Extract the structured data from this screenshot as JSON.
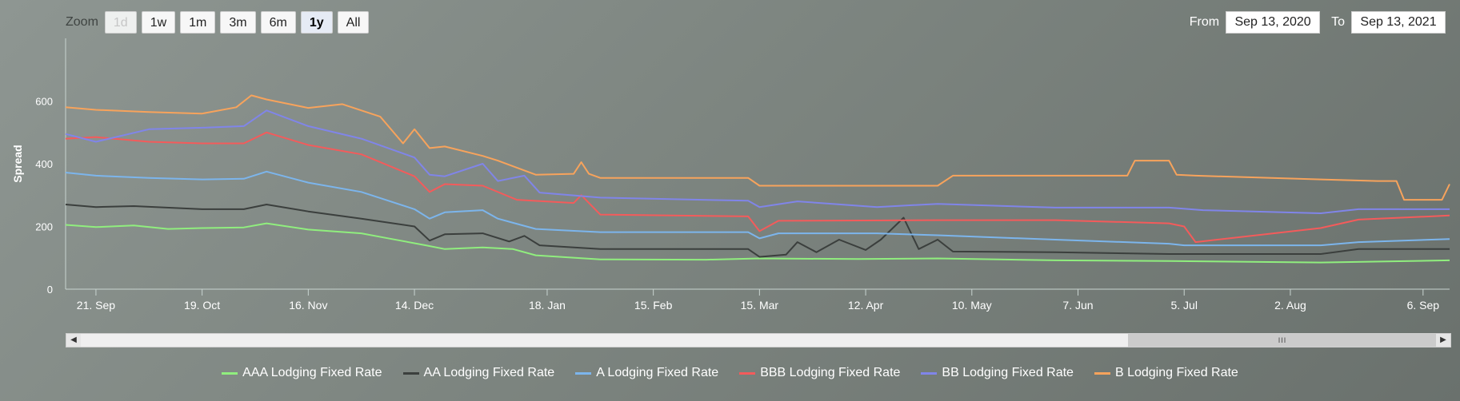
{
  "zoom": {
    "label": "Zoom",
    "buttons": [
      {
        "label": "1d",
        "state": "disabled"
      },
      {
        "label": "1w",
        "state": "normal"
      },
      {
        "label": "1m",
        "state": "normal"
      },
      {
        "label": "3m",
        "state": "normal"
      },
      {
        "label": "6m",
        "state": "normal"
      },
      {
        "label": "1y",
        "state": "selected"
      },
      {
        "label": "All",
        "state": "normal"
      }
    ]
  },
  "range": {
    "from_label": "From",
    "from_value": "Sep 13, 2020",
    "to_label": "To",
    "to_value": "Sep 13, 2021"
  },
  "navigator": {
    "grip": "III"
  },
  "chart_data": {
    "type": "line",
    "title": "",
    "xlabel": "",
    "ylabel": "Spread",
    "ylim": [
      0,
      800
    ],
    "yticks": [
      0,
      200,
      400,
      600
    ],
    "xlim": [
      "2020-09-13",
      "2021-09-13"
    ],
    "xticks": [
      {
        "date": "2020-09-21",
        "label": "21. Sep"
      },
      {
        "date": "2020-10-19",
        "label": "19. Oct"
      },
      {
        "date": "2020-11-16",
        "label": "16. Nov"
      },
      {
        "date": "2020-12-14",
        "label": "14. Dec"
      },
      {
        "date": "2021-01-18",
        "label": "18. Jan"
      },
      {
        "date": "2021-02-15",
        "label": "15. Feb"
      },
      {
        "date": "2021-03-15",
        "label": "15. Mar"
      },
      {
        "date": "2021-04-12",
        "label": "12. Apr"
      },
      {
        "date": "2021-05-10",
        "label": "10. May"
      },
      {
        "date": "2021-06-07",
        "label": "7. Jun"
      },
      {
        "date": "2021-07-05",
        "label": "5. Jul"
      },
      {
        "date": "2021-08-02",
        "label": "2. Aug"
      },
      {
        "date": "2021-09-06",
        "label": "6. Sep"
      }
    ],
    "legend_position": "bottom",
    "grid": false,
    "series": [
      {
        "name": "AAA Lodging Fixed Rate",
        "color": "#90ee7e",
        "x": [
          "2020-09-13",
          "2020-09-21",
          "2020-10-01",
          "2020-10-10",
          "2020-10-19",
          "2020-10-30",
          "2020-11-05",
          "2020-11-16",
          "2020-11-30",
          "2020-12-08",
          "2020-12-17",
          "2020-12-22",
          "2021-01-01",
          "2021-01-09",
          "2021-01-15",
          "2021-02-01",
          "2021-03-01",
          "2021-03-15",
          "2021-04-10",
          "2021-05-01",
          "2021-06-01",
          "2021-07-01",
          "2021-08-10",
          "2021-09-13"
        ],
        "y": [
          205,
          198,
          203,
          192,
          195,
          197,
          210,
          190,
          178,
          160,
          140,
          128,
          133,
          128,
          108,
          95,
          94,
          98,
          96,
          98,
          92,
          90,
          85,
          92
        ]
      },
      {
        "name": "AA Lodging Fixed Rate",
        "color": "#3b3f3d",
        "x": [
          "2020-09-13",
          "2020-09-21",
          "2020-10-01",
          "2020-10-19",
          "2020-10-30",
          "2020-11-05",
          "2020-11-16",
          "2020-11-30",
          "2020-12-14",
          "2020-12-18",
          "2020-12-22",
          "2021-01-01",
          "2021-01-08",
          "2021-01-12",
          "2021-01-16",
          "2021-02-01",
          "2021-03-12",
          "2021-03-15",
          "2021-03-22",
          "2021-03-25",
          "2021-03-30",
          "2021-04-05",
          "2021-04-12",
          "2021-04-16",
          "2021-04-22",
          "2021-04-26",
          "2021-05-01",
          "2021-05-05",
          "2021-06-01",
          "2021-07-01",
          "2021-08-10",
          "2021-08-20",
          "2021-09-13"
        ],
        "y": [
          270,
          262,
          265,
          255,
          255,
          270,
          248,
          225,
          200,
          155,
          175,
          178,
          152,
          170,
          140,
          128,
          128,
          103,
          110,
          150,
          118,
          158,
          125,
          158,
          228,
          128,
          158,
          120,
          118,
          112,
          112,
          128,
          128
        ]
      },
      {
        "name": "A Lodging Fixed Rate",
        "color": "#7cb5ec",
        "x": [
          "2020-09-13",
          "2020-09-21",
          "2020-10-05",
          "2020-10-19",
          "2020-10-30",
          "2020-11-05",
          "2020-11-16",
          "2020-11-30",
          "2020-12-14",
          "2020-12-18",
          "2020-12-22",
          "2021-01-01",
          "2021-01-05",
          "2021-01-15",
          "2021-02-01",
          "2021-03-12",
          "2021-03-15",
          "2021-03-20",
          "2021-04-15",
          "2021-05-01",
          "2021-06-01",
          "2021-07-01",
          "2021-07-05",
          "2021-08-10",
          "2021-08-20",
          "2021-09-13"
        ],
        "y": [
          372,
          362,
          355,
          350,
          352,
          375,
          340,
          310,
          255,
          225,
          245,
          252,
          225,
          192,
          182,
          182,
          162,
          178,
          178,
          172,
          158,
          145,
          140,
          140,
          150,
          160
        ]
      },
      {
        "name": "BBB Lodging Fixed Rate",
        "color": "#f45b5b",
        "x": [
          "2020-09-13",
          "2020-09-21",
          "2020-10-05",
          "2020-10-19",
          "2020-10-30",
          "2020-11-05",
          "2020-11-16",
          "2020-11-30",
          "2020-12-14",
          "2020-12-18",
          "2020-12-22",
          "2021-01-01",
          "2021-01-10",
          "2021-01-25",
          "2021-01-27",
          "2021-02-01",
          "2021-03-12",
          "2021-03-15",
          "2021-03-20",
          "2021-05-01",
          "2021-06-01",
          "2021-07-01",
          "2021-07-05",
          "2021-07-08",
          "2021-08-10",
          "2021-08-20",
          "2021-09-13"
        ],
        "y": [
          480,
          485,
          470,
          465,
          465,
          500,
          460,
          430,
          360,
          310,
          335,
          330,
          285,
          275,
          300,
          238,
          232,
          185,
          218,
          220,
          220,
          210,
          200,
          150,
          195,
          222,
          235
        ]
      },
      {
        "name": "BB Lodging Fixed Rate",
        "color": "#8085e9",
        "x": [
          "2020-09-13",
          "2020-09-21",
          "2020-10-05",
          "2020-10-19",
          "2020-10-30",
          "2020-11-05",
          "2020-11-16",
          "2020-11-30",
          "2020-12-14",
          "2020-12-18",
          "2020-12-22",
          "2021-01-01",
          "2021-01-05",
          "2021-01-12",
          "2021-01-16",
          "2021-02-01",
          "2021-03-12",
          "2021-03-15",
          "2021-03-25",
          "2021-04-15",
          "2021-05-01",
          "2021-06-01",
          "2021-07-01",
          "2021-07-10",
          "2021-08-10",
          "2021-08-20",
          "2021-09-13"
        ],
        "y": [
          495,
          470,
          510,
          515,
          520,
          570,
          520,
          480,
          420,
          365,
          360,
          400,
          345,
          362,
          308,
          292,
          282,
          262,
          280,
          262,
          272,
          260,
          260,
          252,
          242,
          255,
          255
        ]
      },
      {
        "name": "B Lodging Fixed Rate",
        "color": "#f7a35c",
        "x": [
          "2020-09-13",
          "2020-09-21",
          "2020-10-05",
          "2020-10-19",
          "2020-10-28",
          "2020-11-01",
          "2020-11-05",
          "2020-11-16",
          "2020-11-25",
          "2020-12-05",
          "2020-12-11",
          "2020-12-14",
          "2020-12-18",
          "2020-12-22",
          "2021-01-01",
          "2021-01-05",
          "2021-01-15",
          "2021-01-25",
          "2021-01-27",
          "2021-01-29",
          "2021-02-01",
          "2021-03-12",
          "2021-03-15",
          "2021-05-01",
          "2021-05-05",
          "2021-06-20",
          "2021-06-22",
          "2021-07-01",
          "2021-07-03",
          "2021-07-08",
          "2021-08-10",
          "2021-08-25",
          "2021-08-30",
          "2021-09-01",
          "2021-09-11",
          "2021-09-13"
        ],
        "y": [
          580,
          572,
          565,
          560,
          580,
          618,
          605,
          578,
          590,
          550,
          465,
          510,
          450,
          455,
          425,
          410,
          365,
          368,
          405,
          368,
          355,
          355,
          330,
          330,
          362,
          362,
          410,
          410,
          365,
          362,
          350,
          345,
          345,
          285,
          285,
          335
        ]
      }
    ]
  }
}
